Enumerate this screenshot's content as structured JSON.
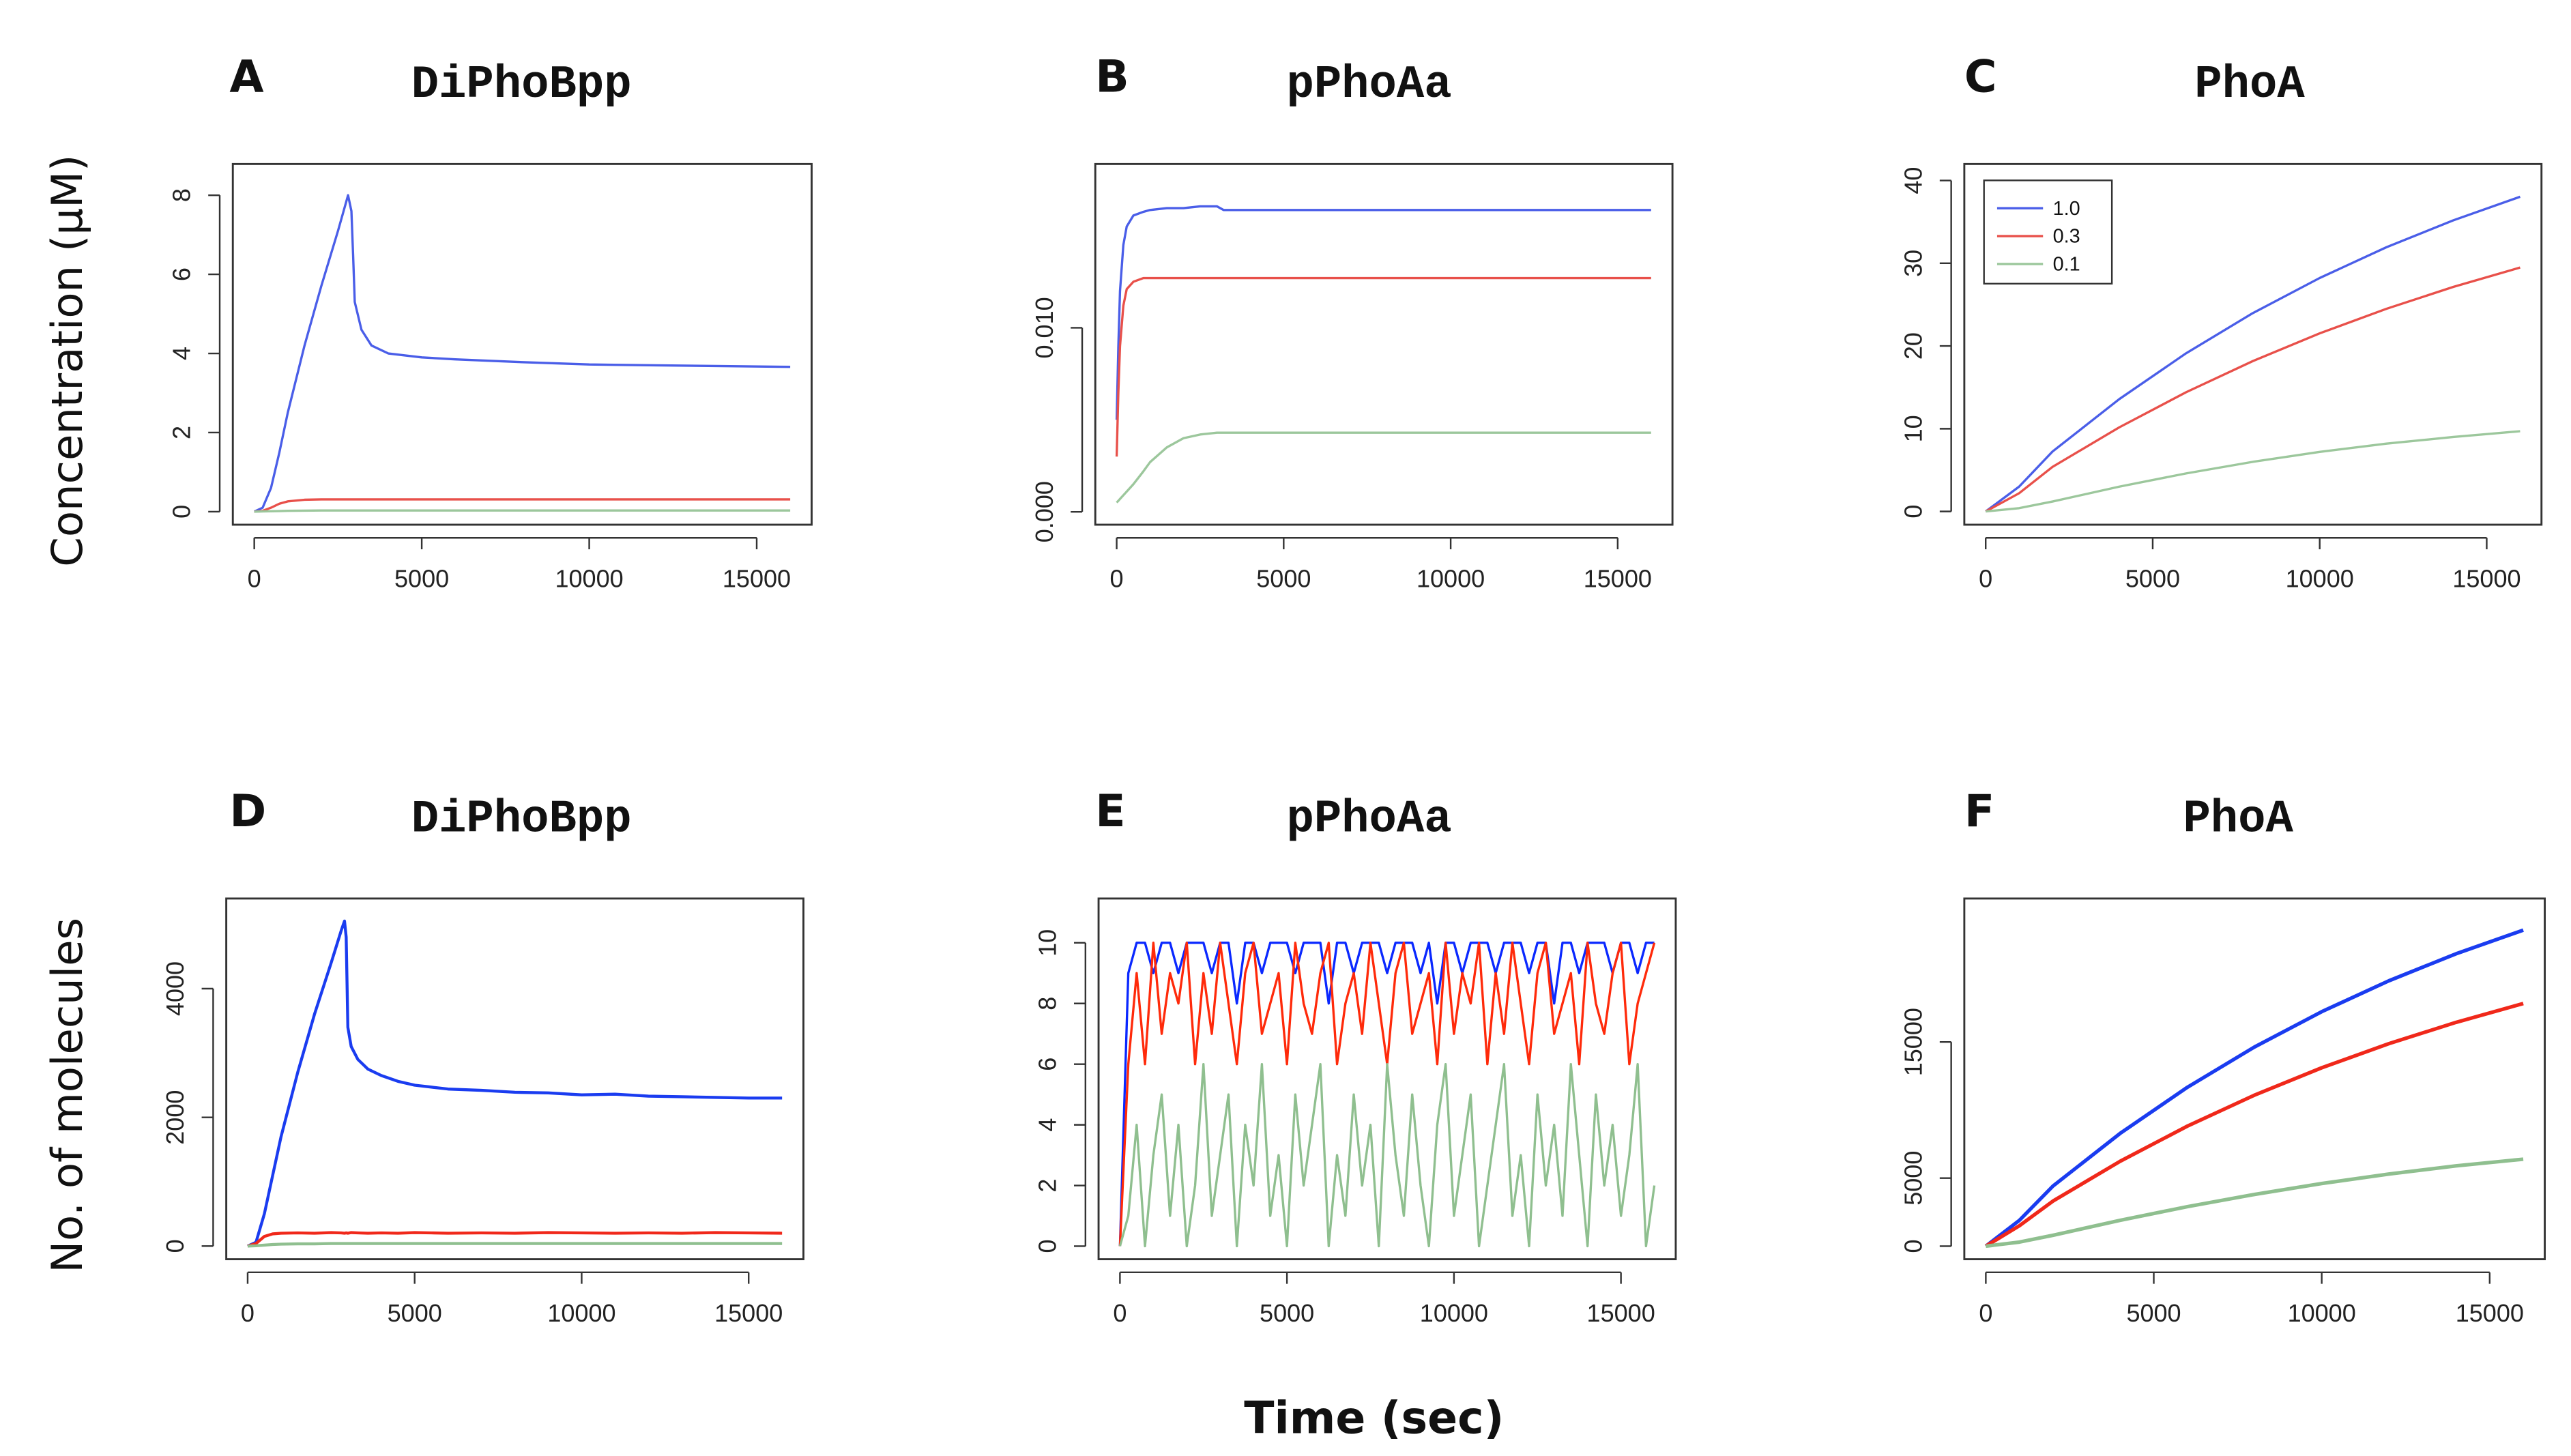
{
  "chart_data": [
    {
      "type": "line",
      "panel": "A",
      "title": "DiPhoBpp",
      "ylabel": "Concentration (μM)",
      "x": [
        0,
        250,
        500,
        750,
        1000,
        1500,
        2000,
        2500,
        2700,
        2800,
        2900,
        2950,
        3000,
        3200,
        3500,
        4000,
        5000,
        6000,
        8000,
        10000,
        12000,
        14000,
        16000
      ],
      "xlim": [
        -640,
        16640
      ],
      "xticks": [
        0,
        5000,
        10000,
        15000
      ],
      "ylim": [
        -0.33,
        8.79
      ],
      "yticks": [
        0,
        2,
        4,
        6,
        8
      ],
      "series": [
        {
          "color": "#4a5ee8",
          "values": [
            0,
            0.1,
            0.6,
            1.5,
            2.5,
            4.2,
            5.7,
            7.1,
            7.7,
            8.0,
            7.6,
            6.5,
            5.3,
            4.6,
            4.2,
            4.0,
            3.9,
            3.85,
            3.78,
            3.72,
            3.7,
            3.68,
            3.66
          ]
        },
        {
          "color": "#e8504a",
          "values": [
            0,
            0.02,
            0.1,
            0.2,
            0.26,
            0.3,
            0.31,
            0.31,
            0.31,
            0.31,
            0.31,
            0.31,
            0.31,
            0.31,
            0.31,
            0.31,
            0.31,
            0.31,
            0.31,
            0.31,
            0.31,
            0.31,
            0.31
          ]
        },
        {
          "color": "#9cc79c",
          "values": [
            0,
            0.005,
            0.01,
            0.015,
            0.02,
            0.025,
            0.03,
            0.03,
            0.03,
            0.03,
            0.03,
            0.03,
            0.03,
            0.03,
            0.03,
            0.03,
            0.03,
            0.03,
            0.03,
            0.03,
            0.03,
            0.03,
            0.03
          ]
        }
      ]
    },
    {
      "type": "line",
      "panel": "B",
      "title": "pPhoAa",
      "x": [
        0,
        50,
        100,
        200,
        300,
        500,
        800,
        1000,
        1500,
        2000,
        2500,
        3000,
        3200,
        4000,
        6000,
        8000,
        10000,
        12000,
        14000,
        16000
      ],
      "xlim": [
        -640,
        16640
      ],
      "xticks": [
        0,
        5000,
        10000,
        15000
      ],
      "ylim": [
        -0.0007,
        0.0189
      ],
      "yticks": [
        {
          "value": 0,
          "label": "0.000"
        },
        {
          "value": 0.01,
          "label": "0.010"
        }
      ],
      "series": [
        {
          "color": "#4a5ee8",
          "values": [
            0.005,
            0.009,
            0.012,
            0.0145,
            0.0155,
            0.0161,
            0.0163,
            0.0164,
            0.0165,
            0.0165,
            0.0166,
            0.0166,
            0.0164,
            0.0164,
            0.0164,
            0.0164,
            0.0164,
            0.0164,
            0.0164,
            0.0164
          ]
        },
        {
          "color": "#e8504a",
          "values": [
            0.003,
            0.0065,
            0.009,
            0.0112,
            0.0121,
            0.0125,
            0.0127,
            0.0127,
            0.0127,
            0.0127,
            0.0127,
            0.0127,
            0.0127,
            0.0127,
            0.0127,
            0.0127,
            0.0127,
            0.0127,
            0.0127,
            0.0127
          ]
        },
        {
          "color": "#9cc79c",
          "values": [
            0.0005,
            0.0006,
            0.0007,
            0.0009,
            0.0011,
            0.0015,
            0.0022,
            0.0027,
            0.0035,
            0.004,
            0.0042,
            0.0043,
            0.0043,
            0.0043,
            0.0043,
            0.0043,
            0.0043,
            0.0043,
            0.0043,
            0.0043
          ]
        }
      ]
    },
    {
      "type": "line",
      "panel": "C",
      "title": "PhoA",
      "legend": "upper left",
      "x": [
        0,
        1000,
        2000,
        4000,
        6000,
        8000,
        10000,
        12000,
        14000,
        16000
      ],
      "xlim": [
        -640,
        16640
      ],
      "xticks": [
        0,
        5000,
        10000,
        15000
      ],
      "ylim": [
        -1.6,
        42
      ],
      "yticks": [
        0,
        10,
        20,
        30,
        40
      ],
      "series": [
        {
          "name": "1.0",
          "color": "#4a5ee8",
          "values": [
            0,
            3.0,
            7.24,
            13.58,
            19.12,
            23.98,
            28.22,
            31.94,
            35.19,
            38.04
          ]
        },
        {
          "name": "0.3",
          "color": "#e8504a",
          "values": [
            0,
            2.2,
            5.39,
            10.17,
            14.41,
            18.18,
            21.53,
            24.5,
            27.14,
            29.48
          ]
        },
        {
          "name": "0.1",
          "color": "#9cc79c",
          "values": [
            0,
            0.4,
            1.2,
            3.0,
            4.6,
            6.0,
            7.2,
            8.2,
            9.0,
            9.7
          ]
        }
      ]
    },
    {
      "type": "line",
      "panel": "D",
      "title": "DiPhoBpp",
      "ylabel": "No. of molecules",
      "x": [
        0,
        250,
        500,
        750,
        1000,
        1500,
        2000,
        2500,
        2800,
        2900,
        2950,
        3000,
        3100,
        3300,
        3600,
        4000,
        4500,
        5000,
        5500,
        6000,
        7000,
        8000,
        9000,
        10000,
        11000,
        12000,
        13000,
        14000,
        15000,
        16000
      ],
      "xlim": [
        -640,
        16640
      ],
      "xticks": [
        0,
        5000,
        10000,
        15000
      ],
      "ylim": [
        -204,
        5400
      ],
      "yticks": [
        0,
        2000,
        4000
      ],
      "series": [
        {
          "color": "#1a3cf0",
          "values": [
            0,
            60,
            500,
            1100,
            1700,
            2700,
            3600,
            4400,
            4900,
            5050,
            4800,
            3400,
            3100,
            2900,
            2750,
            2650,
            2560,
            2500,
            2470,
            2440,
            2420,
            2390,
            2380,
            2350,
            2360,
            2330,
            2320,
            2310,
            2300,
            2300
          ]
        },
        {
          "color": "#f0281a",
          "values": [
            0,
            40,
            150,
            190,
            200,
            205,
            200,
            210,
            205,
            200,
            205,
            200,
            210,
            205,
            200,
            205,
            200,
            210,
            205,
            200,
            205,
            200,
            210,
            205,
            200,
            205,
            200,
            210,
            205,
            200
          ]
        },
        {
          "color": "#8fbf8f",
          "values": [
            0,
            5,
            15,
            25,
            30,
            35,
            35,
            40,
            40,
            40,
            40,
            40,
            40,
            40,
            40,
            40,
            40,
            40,
            40,
            40,
            40,
            40,
            40,
            40,
            40,
            40,
            40,
            40,
            40,
            40
          ]
        }
      ]
    },
    {
      "type": "line",
      "panel": "E",
      "title": "pPhoAa",
      "xlabel": "Time (sec)",
      "x": [
        0,
        250,
        500,
        750,
        1000,
        1250,
        1500,
        1750,
        2000,
        2250,
        2500,
        2750,
        3000,
        3250,
        3500,
        3750,
        4000,
        4250,
        4500,
        4750,
        5000,
        5250,
        5500,
        5750,
        6000,
        6250,
        6500,
        6750,
        7000,
        7250,
        7500,
        7750,
        8000,
        8250,
        8500,
        8750,
        9000,
        9250,
        9500,
        9750,
        10000,
        10250,
        10500,
        10750,
        11000,
        11250,
        11500,
        11750,
        12000,
        12250,
        12500,
        12750,
        13000,
        13250,
        13500,
        13750,
        14000,
        14250,
        14500,
        14750,
        15000,
        15250,
        15500,
        15750,
        16000
      ],
      "xlim": [
        -640,
        16640
      ],
      "xticks": [
        0,
        5000,
        10000,
        15000
      ],
      "ylim": [
        -0.43,
        11.46
      ],
      "yticks": [
        0,
        2,
        4,
        6,
        8,
        10
      ],
      "series": [
        {
          "color": "#0a28ff",
          "values": [
            0,
            9,
            10,
            10,
            9,
            10,
            10,
            9,
            10,
            10,
            10,
            9,
            10,
            10,
            8,
            10,
            10,
            9,
            10,
            10,
            10,
            9,
            10,
            10,
            10,
            8,
            10,
            10,
            9,
            10,
            10,
            10,
            9,
            10,
            10,
            10,
            9,
            10,
            8,
            10,
            10,
            9,
            10,
            10,
            10,
            9,
            10,
            10,
            10,
            9,
            10,
            10,
            8,
            10,
            10,
            9,
            10,
            10,
            10,
            9,
            10,
            10,
            9,
            10,
            10
          ]
        },
        {
          "color": "#ff2a0a",
          "values": [
            0,
            6,
            9,
            6,
            10,
            7,
            9,
            8,
            10,
            6,
            9,
            7,
            10,
            8,
            6,
            9,
            10,
            7,
            8,
            9,
            6,
            10,
            8,
            7,
            9,
            10,
            6,
            8,
            9,
            7,
            10,
            8,
            6,
            9,
            10,
            7,
            8,
            9,
            6,
            10,
            7,
            9,
            8,
            10,
            6,
            9,
            7,
            10,
            8,
            6,
            9,
            10,
            7,
            8,
            9,
            6,
            10,
            8,
            7,
            9,
            10,
            6,
            8,
            9,
            10
          ]
        },
        {
          "color": "#8fbf8f",
          "values": [
            0,
            1,
            4,
            0,
            3,
            5,
            1,
            4,
            0,
            2,
            6,
            1,
            3,
            5,
            0,
            4,
            2,
            6,
            1,
            3,
            0,
            5,
            2,
            4,
            6,
            0,
            3,
            1,
            5,
            2,
            4,
            0,
            6,
            3,
            1,
            5,
            2,
            0,
            4,
            6,
            1,
            3,
            5,
            0,
            2,
            4,
            6,
            1,
            3,
            0,
            5,
            2,
            4,
            1,
            6,
            3,
            0,
            5,
            2,
            4,
            1,
            3,
            6,
            0,
            2
          ]
        }
      ]
    },
    {
      "type": "line",
      "panel": "F",
      "title": "PhoA",
      "x": [
        0,
        1000,
        2000,
        4000,
        6000,
        8000,
        10000,
        12000,
        14000,
        16000
      ],
      "xlim": [
        -640,
        16640
      ],
      "xticks": [
        0,
        5000,
        10000,
        15000
      ],
      "ylim": [
        -960,
        25540
      ],
      "yticks": [
        0,
        5000,
        15000
      ],
      "series": [
        {
          "color": "#1a3cf0",
          "values": [
            0,
            1900,
            4418,
            8287,
            11671,
            14634,
            17226,
            19495,
            21481,
            23215
          ]
        },
        {
          "color": "#f0281a",
          "values": [
            0,
            1500,
            3314,
            6238,
            8818,
            11097,
            13104,
            14878,
            16443,
            17825
          ]
        },
        {
          "color": "#8fbf8f",
          "values": [
            0,
            300,
            800,
            1900,
            2900,
            3800,
            4600,
            5300,
            5900,
            6390
          ]
        }
      ]
    }
  ]
}
